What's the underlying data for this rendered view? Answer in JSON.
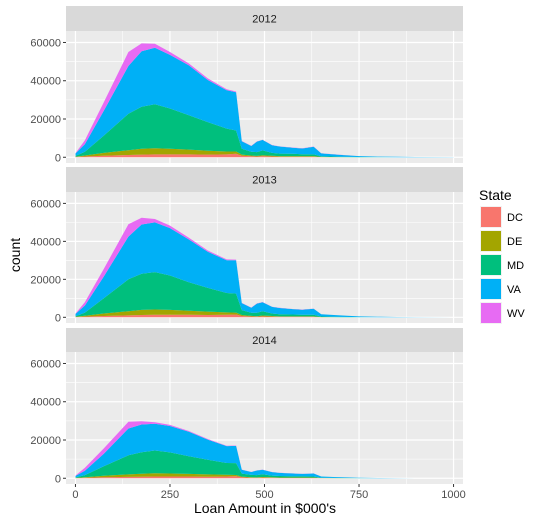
{
  "chart_data": {
    "type": "area",
    "stacked": true,
    "xlabel": "Loan Amount in $000's",
    "ylabel": "count",
    "xlim": [
      -25,
      1025
    ],
    "ylim": [
      -3000,
      66000
    ],
    "x_ticks": [
      0,
      250,
      500,
      750,
      1000
    ],
    "y_ticks": [
      0,
      20000,
      40000,
      60000
    ],
    "grid": true,
    "legend": {
      "title": "State",
      "position": "right",
      "entries": [
        {
          "name": "DC",
          "color": "#F8766D"
        },
        {
          "name": "DE",
          "color": "#A3A500"
        },
        {
          "name": "MD",
          "color": "#00BF7D"
        },
        {
          "name": "VA",
          "color": "#00B0F6"
        },
        {
          "name": "WV",
          "color": "#E76BF3"
        }
      ]
    },
    "stack_order_bottom_to_top": [
      "DC",
      "DE",
      "MD",
      "VA",
      "WV"
    ],
    "x": [
      0,
      25,
      75,
      140,
      175,
      210,
      250,
      300,
      350,
      400,
      425,
      440,
      465,
      480,
      495,
      520,
      540,
      575,
      600,
      630,
      650,
      700,
      750,
      800,
      850,
      900,
      1000
    ],
    "panels": [
      {
        "label": "2012",
        "series": [
          {
            "name": "DC",
            "values": [
              200,
              400,
              800,
              1200,
              1400,
              1500,
              1500,
              1500,
              1400,
              1500,
              1800,
              800,
              500,
              400,
              600,
              400,
              300,
              300,
              300,
              300,
              100,
              50,
              20,
              10,
              5,
              3,
              2
            ]
          },
          {
            "name": "DE",
            "values": [
              100,
              500,
              1500,
              2500,
              3000,
              3200,
              3000,
              2500,
              2000,
              1500,
              1200,
              600,
              400,
              300,
              500,
              400,
              300,
              300,
              300,
              300,
              100,
              50,
              20,
              10,
              5,
              3,
              2
            ]
          },
          {
            "name": "MD",
            "values": [
              400,
              2000,
              9000,
              19000,
              22000,
              23000,
              21000,
              18000,
              15000,
              12000,
              11000,
              3000,
              2000,
              2000,
              2500,
              1500,
              1300,
              1200,
              1000,
              900,
              300,
              150,
              80,
              40,
              20,
              10,
              5
            ]
          },
          {
            "name": "VA",
            "values": [
              1300,
              4000,
              13000,
              25000,
              29000,
              29500,
              28000,
              26000,
              22000,
              20000,
              20000,
              4000,
              3000,
              5500,
              5500,
              4000,
              3700,
              3200,
              3000,
              4000,
              1500,
              1000,
              500,
              300,
              200,
              100,
              60
            ]
          },
          {
            "name": "WV",
            "values": [
              200,
              2000,
              4500,
              7300,
              4100,
              2100,
              1500,
              1000,
              800,
              500,
              400,
              100,
              100,
              100,
              100,
              100,
              100,
              100,
              100,
              100,
              50,
              20,
              10,
              5,
              3,
              2,
              1
            ]
          }
        ]
      },
      {
        "label": "2013",
        "series": [
          {
            "name": "DC",
            "values": [
              150,
              350,
              700,
              1000,
              1200,
              1300,
              1300,
              1300,
              1200,
              1300,
              1500,
              700,
              400,
              350,
              500,
              350,
              250,
              250,
              250,
              250,
              80,
              40,
              15,
              8,
              4,
              2,
              1
            ]
          },
          {
            "name": "DE",
            "values": [
              100,
              450,
              1300,
              2200,
              2700,
              2800,
              2600,
              2200,
              1800,
              1300,
              1000,
              500,
              350,
              250,
              450,
              350,
              250,
              250,
              250,
              250,
              80,
              40,
              15,
              8,
              4,
              2,
              1
            ]
          },
          {
            "name": "MD",
            "values": [
              350,
              1700,
              8000,
              16800,
              19000,
              19700,
              18100,
              15000,
              12500,
              10200,
              10000,
              2600,
              1700,
              1800,
              2200,
              1300,
              1100,
              1000,
              800,
              800,
              250,
              120,
              60,
              30,
              15,
              8,
              4
            ]
          },
          {
            "name": "VA",
            "values": [
              1200,
              3700,
              11500,
              22500,
              26000,
              26200,
              25000,
              22500,
              19000,
              17200,
              17500,
              3700,
              2600,
              4800,
              4800,
              3500,
              3300,
              2800,
              2700,
              3200,
              1200,
              800,
              400,
              250,
              150,
              80,
              50
            ]
          },
          {
            "name": "WV",
            "values": [
              200,
              1800,
              4000,
              6500,
              3500,
              1800,
              1300,
              900,
              700,
              500,
              400,
              100,
              100,
              100,
              100,
              100,
              100,
              100,
              100,
              100,
              50,
              20,
              10,
              5,
              3,
              2,
              1
            ]
          }
        ]
      },
      {
        "label": "2014",
        "series": [
          {
            "name": "DC",
            "values": [
              100,
              250,
              500,
              700,
              800,
              900,
              900,
              900,
              800,
              900,
              1000,
              500,
              300,
              250,
              350,
              250,
              200,
              200,
              200,
              200,
              60,
              30,
              10,
              5,
              3,
              2,
              1
            ]
          },
          {
            "name": "DE",
            "values": [
              80,
              300,
              800,
              1300,
              1600,
              1700,
              1600,
              1400,
              1200,
              900,
              700,
              350,
              250,
              200,
              300,
              250,
              200,
              200,
              200,
              200,
              60,
              30,
              10,
              5,
              3,
              2,
              1
            ]
          },
          {
            "name": "MD",
            "values": [
              250,
              1100,
              5000,
              10000,
              11200,
              11900,
              11000,
              9200,
              7700,
              6200,
              6200,
              1600,
              1200,
              1200,
              1400,
              900,
              800,
              700,
              600,
              500,
              180,
              80,
              40,
              20,
              10,
              5,
              3
            ]
          },
          {
            "name": "VA",
            "values": [
              800,
              2300,
              6500,
              14000,
              14500,
              14000,
              13800,
              12800,
              10500,
              8800,
              9000,
              2000,
              1500,
              2400,
              2400,
              1800,
              1600,
              1400,
              1300,
              1600,
              600,
              400,
              200,
              120,
              70,
              40,
              25
            ]
          },
          {
            "name": "WV",
            "values": [
              200,
              1500,
              2800,
              3500,
              1700,
              800,
              600,
              400,
              300,
              200,
              200,
              80,
              60,
              60,
              60,
              60,
              60,
              60,
              60,
              60,
              30,
              15,
              8,
              4,
              2,
              1,
              1
            ]
          }
        ]
      }
    ]
  }
}
